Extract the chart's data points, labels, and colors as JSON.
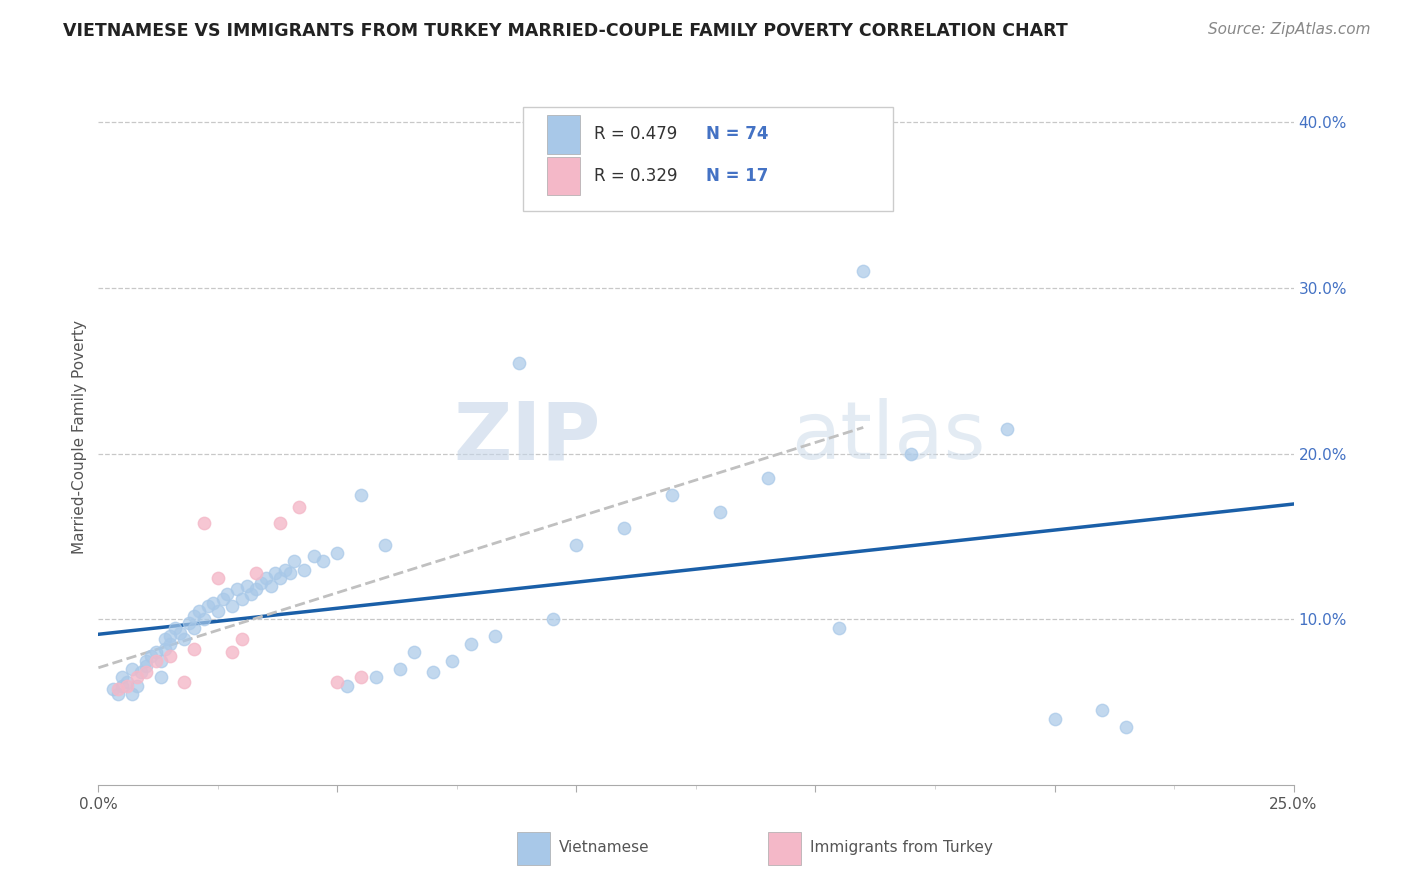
{
  "title": "VIETNAMESE VS IMMIGRANTS FROM TURKEY MARRIED-COUPLE FAMILY POVERTY CORRELATION CHART",
  "source": "Source: ZipAtlas.com",
  "ylabel": "Married-Couple Family Poverty",
  "xlim": [
    0.0,
    0.25
  ],
  "ylim": [
    0.0,
    0.42
  ],
  "legend_r1": "R = 0.479",
  "legend_n1": "N = 74",
  "legend_r2": "R = 0.329",
  "legend_n2": "N = 17",
  "color_vietnamese": "#a8c8e8",
  "color_turkey": "#f4b8c8",
  "color_line_vietnamese": "#1a5fa8",
  "color_line_turkey": "#c0c0c0",
  "watermark_zip": "ZIP",
  "watermark_atlas": "atlas",
  "bg_color": "#ffffff",
  "grid_color": "#c8c8c8",
  "tick_color": "#4472c4",
  "label_color": "#555555"
}
